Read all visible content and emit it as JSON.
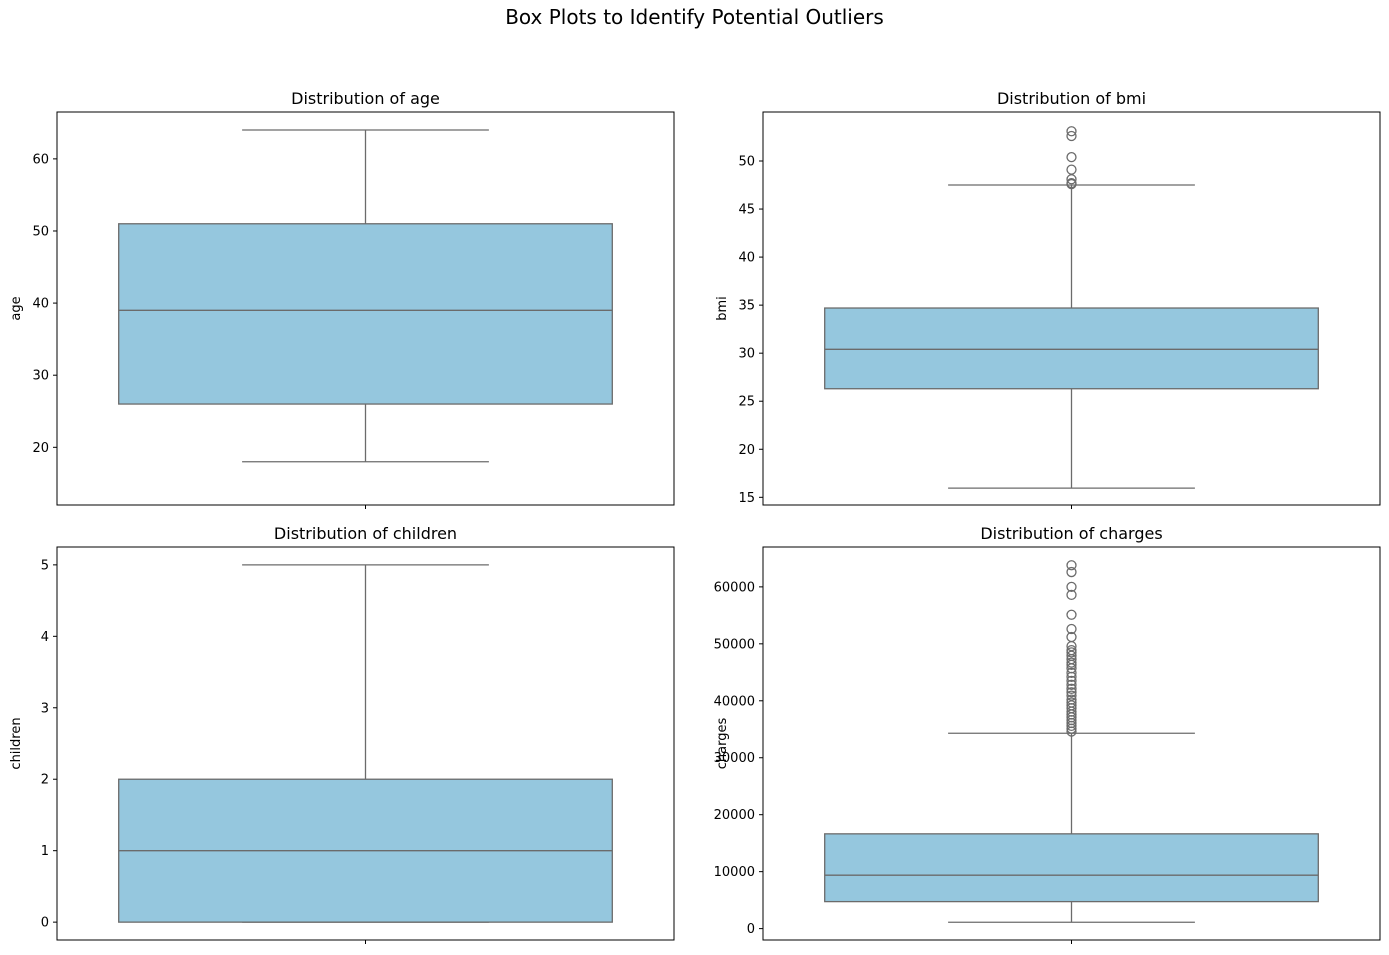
{
  "figure": {
    "suptitle": "Box Plots to Identify Potential Outliers"
  },
  "colors": {
    "box_fill": "#95c7de",
    "line": "#6b6b6b",
    "axes": "#000000"
  },
  "chart_data": [
    {
      "type": "box",
      "title": "Distribution of age",
      "xlabel": "",
      "ylabel": "age",
      "ylim": [
        12,
        66.5
      ],
      "yticks": [
        20,
        30,
        40,
        50,
        60
      ],
      "whisker_low": 18,
      "q1": 26,
      "median": 39,
      "q3": 51,
      "whisker_high": 64,
      "outliers": []
    },
    {
      "type": "box",
      "title": "Distribution of bmi",
      "xlabel": "",
      "ylabel": "bmi",
      "ylim": [
        14.2,
        55.1
      ],
      "yticks": [
        15,
        20,
        25,
        30,
        35,
        40,
        45,
        50
      ],
      "whisker_low": 15.96,
      "q1": 26.3,
      "median": 30.4,
      "q3": 34.7,
      "whisker_high": 47.5,
      "outliers": [
        47.6,
        47.7,
        48.1,
        49.1,
        50.4,
        52.6,
        53.1
      ]
    },
    {
      "type": "box",
      "title": "Distribution of children",
      "xlabel": "",
      "ylabel": "children",
      "ylim": [
        -0.25,
        5.25
      ],
      "yticks": [
        0,
        1,
        2,
        3,
        4,
        5
      ],
      "whisker_low": 0,
      "q1": 0,
      "median": 1,
      "q3": 2,
      "whisker_high": 5,
      "outliers": []
    },
    {
      "type": "box",
      "title": "Distribution of charges",
      "xlabel": "",
      "ylabel": "charges",
      "ylim": [
        -2000,
        67000
      ],
      "yticks": [
        0,
        10000,
        20000,
        30000,
        40000,
        50000,
        60000
      ],
      "whisker_low": 1122,
      "q1": 4740,
      "median": 9382,
      "q3": 16640,
      "whisker_high": 34300,
      "outliers": [
        34600,
        35100,
        35600,
        36100,
        36600,
        37100,
        37600,
        38100,
        38700,
        39200,
        39700,
        40200,
        40900,
        41500,
        42100,
        42800,
        43500,
        44200,
        44900,
        45700,
        46300,
        46700,
        47300,
        47900,
        48500,
        48900,
        49600,
        51200,
        52600,
        55100,
        58600,
        60000,
        62600,
        63800
      ]
    }
  ]
}
